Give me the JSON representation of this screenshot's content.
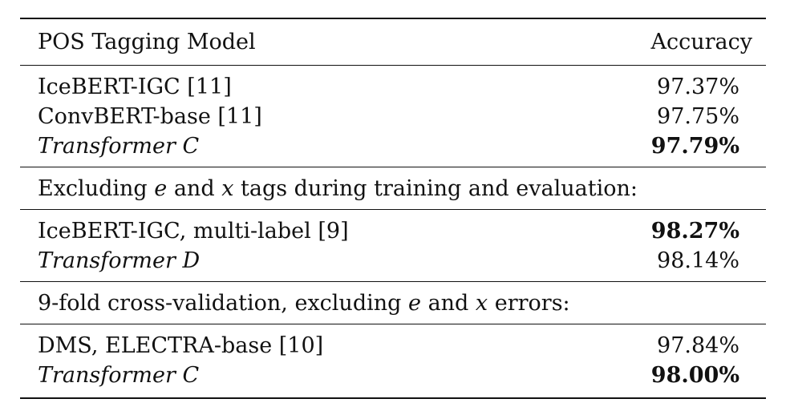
{
  "table": {
    "header": {
      "model": "POS Tagging Model",
      "accuracy": "Accuracy"
    },
    "group1": [
      {
        "model": "IceBERT-IGC [11]",
        "accuracy": "97.37%",
        "italic": false,
        "bold": false
      },
      {
        "model": "ConvBERT-base [11]",
        "accuracy": "97.75%",
        "italic": false,
        "bold": false
      },
      {
        "model": "Transformer C",
        "accuracy": "97.79%",
        "italic": true,
        "bold": true
      }
    ],
    "note1": {
      "part1": "Excluding ",
      "e": "e",
      "part2": " and ",
      "x": "x",
      "part3": " tags during training and evaluation:"
    },
    "group2": [
      {
        "model": "IceBERT-IGC, multi-label [9]",
        "accuracy": "98.27%",
        "italic": false,
        "bold": true
      },
      {
        "model": "Transformer D",
        "accuracy": "98.14%",
        "italic": true,
        "bold": false
      }
    ],
    "note2": {
      "part1": "9-fold cross-validation, excluding ",
      "e": "e",
      "part2": " and ",
      "x": "x",
      "part3": " errors:"
    },
    "group3": [
      {
        "model": "DMS, ELECTRA-base [10]",
        "accuracy": "97.84%",
        "italic": false,
        "bold": false
      },
      {
        "model": "Transformer C",
        "accuracy": "98.00%",
        "italic": true,
        "bold": true
      }
    ]
  }
}
